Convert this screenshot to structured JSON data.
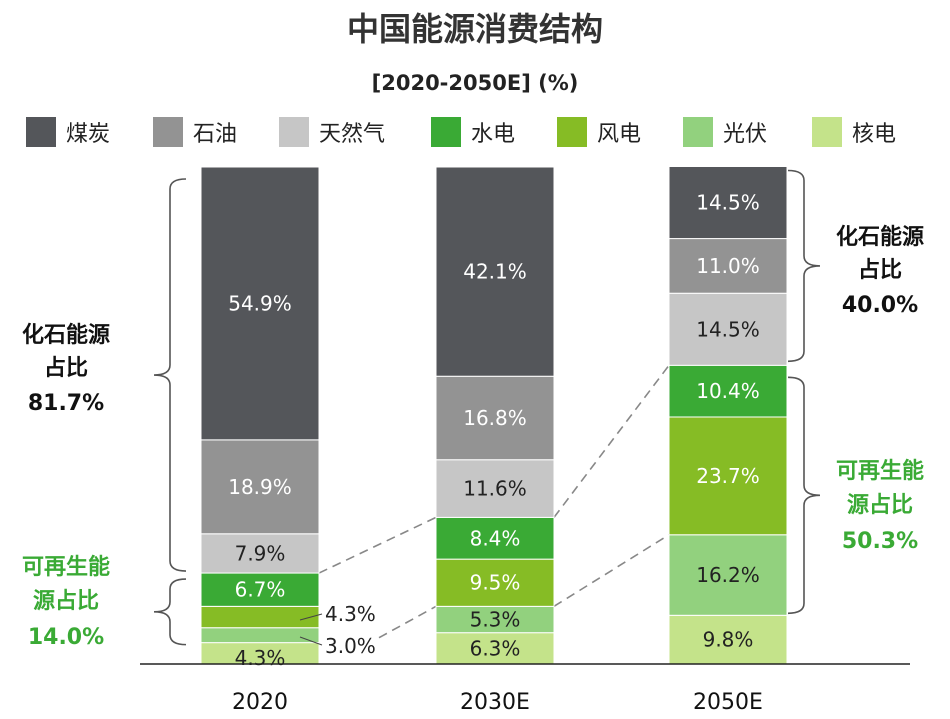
{
  "chart_data": {
    "type": "bar",
    "stacked": true,
    "title": "中国能源消费结构",
    "subtitle": "[2020-2050E] (%)",
    "categories": [
      "2020",
      "2030E",
      "2050E"
    ],
    "series": [
      {
        "name": "煤炭",
        "color": "#54565a",
        "values": [
          54.9,
          42.1,
          14.5
        ]
      },
      {
        "name": "石油",
        "color": "#939393",
        "values": [
          18.9,
          16.8,
          11.0
        ]
      },
      {
        "name": "天然气",
        "color": "#c6c6c6",
        "values": [
          7.9,
          11.6,
          14.5
        ]
      },
      {
        "name": "水电",
        "color": "#3aaa35",
        "values": [
          6.7,
          8.4,
          10.4
        ]
      },
      {
        "name": "风电",
        "color": "#86bc25",
        "values": [
          4.3,
          9.5,
          23.7
        ]
      },
      {
        "name": "光伏",
        "color": "#92d17e",
        "values": [
          3.0,
          5.3,
          16.2
        ]
      },
      {
        "name": "核电",
        "color": "#c4e38a",
        "values": [
          4.3,
          6.3,
          9.8
        ]
      }
    ],
    "data_labels": [
      [
        "54.9%",
        "18.9%",
        "7.9%",
        "6.7%",
        "4.3%",
        "3.0%",
        "4.3%"
      ],
      [
        "42.1%",
        "16.8%",
        "11.6%",
        "8.4%",
        "9.5%",
        "5.3%",
        "6.3%"
      ],
      [
        "14.5%",
        "11.0%",
        "14.5%",
        "10.4%",
        "23.7%",
        "16.2%",
        "9.8%"
      ]
    ],
    "legend_position": "top",
    "ylim": [
      0,
      100
    ]
  },
  "annotations": {
    "fossil_2020": {
      "line1": "化石能源",
      "line2": "占比",
      "value": "81.7%"
    },
    "renew_2020": {
      "line1": "可再生能",
      "line2": "源占比",
      "value": "14.0%"
    },
    "fossil_2050": {
      "line1": "化石能源",
      "line2": "占比",
      "value": "40.0%"
    },
    "renew_2050": {
      "line1": "可再生能",
      "line2": "源占比",
      "value": "50.3%"
    }
  },
  "colors": {
    "fossil_text": "#111111",
    "renewable_text": "#3aaa35",
    "white_label": "#ffffff",
    "dark_label": "#222222"
  }
}
